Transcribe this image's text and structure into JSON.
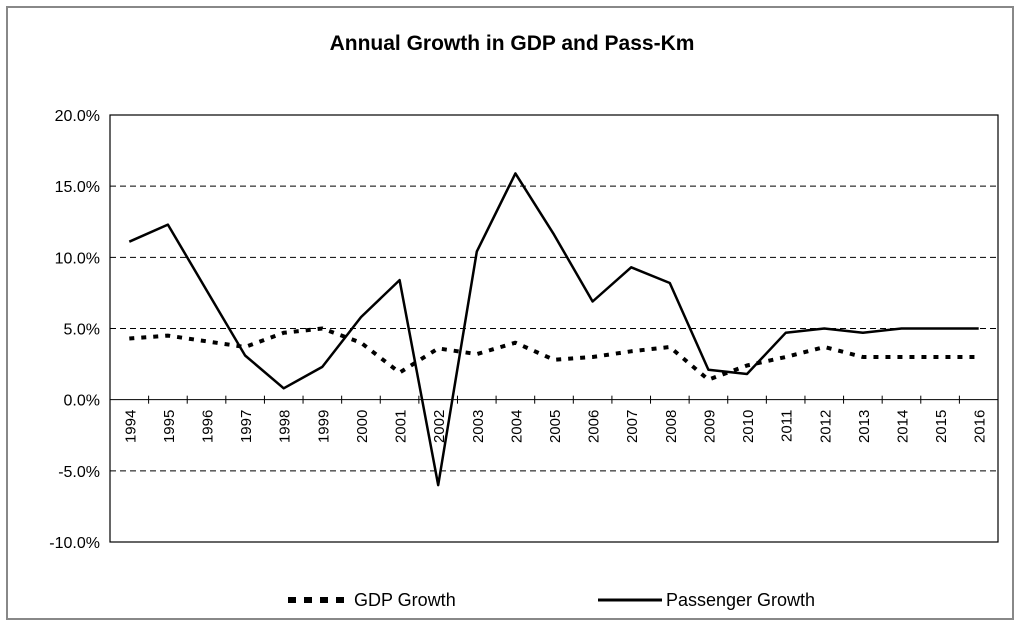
{
  "chart_data": {
    "type": "line",
    "title": "Annual Growth in GDP and Pass-Km",
    "xlabel": "",
    "ylabel": "",
    "ylim": [
      -10,
      20
    ],
    "yticks": [
      20,
      15,
      10,
      5,
      0,
      -5,
      -10
    ],
    "ytick_labels": [
      "20.0%",
      "15.0%",
      "10.0%",
      "5.0%",
      "0.0%",
      "-5.0%",
      "-10.0%"
    ],
    "categories": [
      "1994",
      "1995",
      "1996",
      "1997",
      "1998",
      "1999",
      "2000",
      "2001",
      "2002",
      "2003",
      "2004",
      "2005",
      "2006",
      "2007",
      "2008",
      "2009",
      "2010",
      "2011",
      "2012",
      "2013",
      "2014",
      "2015",
      "2016"
    ],
    "grid": "horizontal dashed at 15%, 10%, 5%, -5%",
    "legend_position": "bottom",
    "series": [
      {
        "name": "GDP Growth",
        "style": "dotted",
        "values": [
          4.3,
          4.5,
          4.1,
          3.7,
          4.7,
          5.0,
          4.0,
          1.9,
          3.6,
          3.2,
          4.0,
          2.8,
          3.0,
          3.4,
          3.7,
          1.4,
          2.4,
          3.0,
          3.7,
          3.0,
          3.0,
          3.0,
          3.0
        ]
      },
      {
        "name": "Passenger Growth",
        "style": "solid",
        "values": [
          11.1,
          12.3,
          7.7,
          3.1,
          0.8,
          2.3,
          5.8,
          8.4,
          -6.0,
          10.4,
          15.9,
          11.6,
          6.9,
          9.3,
          8.2,
          2.1,
          1.8,
          4.7,
          5.0,
          4.7,
          5.0,
          5.0,
          5.0
        ]
      }
    ]
  }
}
